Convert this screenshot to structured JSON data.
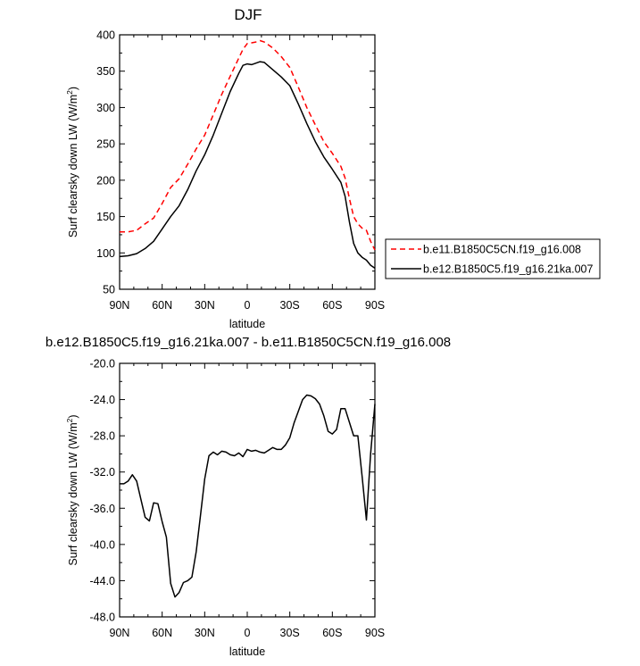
{
  "chart_data": [
    {
      "type": "line",
      "title": "DJF",
      "xlabel": "latitude",
      "ylabel": "Surf clearsky down LW (W/m",
      "ylabel_sup": "2",
      "ylabel_close": ")",
      "xlim": [
        90,
        -90
      ],
      "ylim": [
        50,
        400
      ],
      "x_ticks": [
        {
          "value": 90,
          "label": "90N"
        },
        {
          "value": 60,
          "label": "60N"
        },
        {
          "value": 30,
          "label": "30N"
        },
        {
          "value": 0,
          "label": "0"
        },
        {
          "value": -30,
          "label": "30S"
        },
        {
          "value": -60,
          "label": "60S"
        },
        {
          "value": -90,
          "label": "90S"
        }
      ],
      "y_ticks": [
        {
          "value": 400,
          "label": "400"
        },
        {
          "value": 350,
          "label": "350"
        },
        {
          "value": 300,
          "label": "300"
        },
        {
          "value": 250,
          "label": "250"
        },
        {
          "value": 200,
          "label": "200"
        },
        {
          "value": 150,
          "label": "150"
        },
        {
          "value": 100,
          "label": "100"
        },
        {
          "value": 50,
          "label": "50"
        }
      ],
      "legend": "right",
      "series": [
        {
          "name": "b.e11.B1850C5CN.f19_g16.008",
          "color": "#ff0000",
          "dash": "dashed",
          "x": [
            90,
            84,
            78,
            72,
            66,
            60,
            54,
            48,
            42,
            36,
            30,
            24,
            18,
            12,
            6,
            3,
            0,
            -3,
            -6,
            -9,
            -12,
            -18,
            -24,
            -30,
            -36,
            -42,
            -48,
            -54,
            -60,
            -66,
            -69,
            -72,
            -75,
            -78,
            -81,
            -84,
            -87,
            -90
          ],
          "y": [
            129,
            129,
            131,
            140,
            148,
            168,
            190,
            202,
            222,
            243,
            262,
            290,
            318,
            343,
            368,
            380,
            388,
            389,
            390,
            392,
            390,
            382,
            370,
            355,
            328,
            300,
            276,
            253,
            237,
            219,
            203,
            175,
            150,
            140,
            134,
            131,
            116,
            104
          ]
        },
        {
          "name": "b.e12.B1850C5.f19_g16.21ka.007",
          "color": "#000000",
          "dash": "solid",
          "x": [
            90,
            84,
            78,
            72,
            66,
            60,
            54,
            48,
            42,
            36,
            30,
            24,
            18,
            12,
            6,
            3,
            0,
            -3,
            -6,
            -9,
            -12,
            -18,
            -24,
            -30,
            -36,
            -42,
            -48,
            -54,
            -60,
            -66,
            -69,
            -72,
            -75,
            -78,
            -81,
            -84,
            -87,
            -90
          ],
          "y": [
            95,
            96,
            99,
            106,
            116,
            133,
            150,
            165,
            187,
            213,
            235,
            262,
            292,
            322,
            347,
            358,
            360,
            359,
            361,
            363,
            362,
            352,
            342,
            330,
            305,
            278,
            253,
            232,
            215,
            197,
            178,
            143,
            113,
            100,
            94,
            90,
            83,
            79
          ]
        }
      ]
    },
    {
      "type": "line",
      "title": "b.e12.B1850C5.f19_g16.21ka.007 - b.e11.B1850C5CN.f19_g16.008",
      "xlabel": "latitude",
      "ylabel": "Surf clearsky down LW (W/m",
      "ylabel_sup": "2",
      "ylabel_close": ")",
      "xlim": [
        90,
        -90
      ],
      "ylim": [
        -48,
        -20
      ],
      "x_ticks": [
        {
          "value": 90,
          "label": "90N"
        },
        {
          "value": 60,
          "label": "60N"
        },
        {
          "value": 30,
          "label": "30N"
        },
        {
          "value": 0,
          "label": "0"
        },
        {
          "value": -30,
          "label": "30S"
        },
        {
          "value": -60,
          "label": "60S"
        },
        {
          "value": -90,
          "label": "90S"
        }
      ],
      "y_ticks": [
        {
          "value": -20,
          "label": "-20.0"
        },
        {
          "value": -24,
          "label": "-24.0"
        },
        {
          "value": -28,
          "label": "-28.0"
        },
        {
          "value": -32,
          "label": "-32.0"
        },
        {
          "value": -36,
          "label": "-36.0"
        },
        {
          "value": -40,
          "label": "-40.0"
        },
        {
          "value": -44,
          "label": "-44.0"
        },
        {
          "value": -48,
          "label": "-48.0"
        }
      ],
      "series": [
        {
          "color": "#000000",
          "dash": "solid",
          "x": [
            90,
            87,
            84,
            81,
            78,
            75,
            72,
            69,
            66,
            63,
            60,
            57,
            54,
            51,
            48,
            45,
            42,
            39,
            36,
            33,
            30,
            27,
            24,
            21,
            18,
            15,
            12,
            9,
            6,
            3,
            0,
            -3,
            -6,
            -9,
            -12,
            -15,
            -18,
            -21,
            -24,
            -27,
            -30,
            -33,
            -36,
            -39,
            -42,
            -45,
            -48,
            -51,
            -54,
            -57,
            -60,
            -63,
            -66,
            -69,
            -72,
            -75,
            -78,
            -81,
            -84,
            -87,
            -90
          ],
          "y": [
            -33.3,
            -33.3,
            -33.0,
            -32.3,
            -33.0,
            -35.0,
            -37.0,
            -37.4,
            -35.4,
            -35.5,
            -37.5,
            -39.2,
            -44.3,
            -45.8,
            -45.3,
            -44.2,
            -44.0,
            -43.6,
            -40.8,
            -36.8,
            -32.8,
            -30.2,
            -29.8,
            -30.1,
            -29.7,
            -29.8,
            -30.1,
            -30.2,
            -29.9,
            -30.3,
            -29.5,
            -29.7,
            -29.6,
            -29.8,
            -29.9,
            -29.6,
            -29.3,
            -29.5,
            -29.5,
            -29.0,
            -28.2,
            -26.6,
            -25.3,
            -24.0,
            -23.5,
            -23.6,
            -23.9,
            -24.5,
            -25.8,
            -27.5,
            -27.8,
            -27.3,
            -25.0,
            -25.0,
            -26.5,
            -28.0,
            -28.0,
            -32.5,
            -37.3,
            -30.0,
            -24.5
          ]
        }
      ]
    }
  ]
}
